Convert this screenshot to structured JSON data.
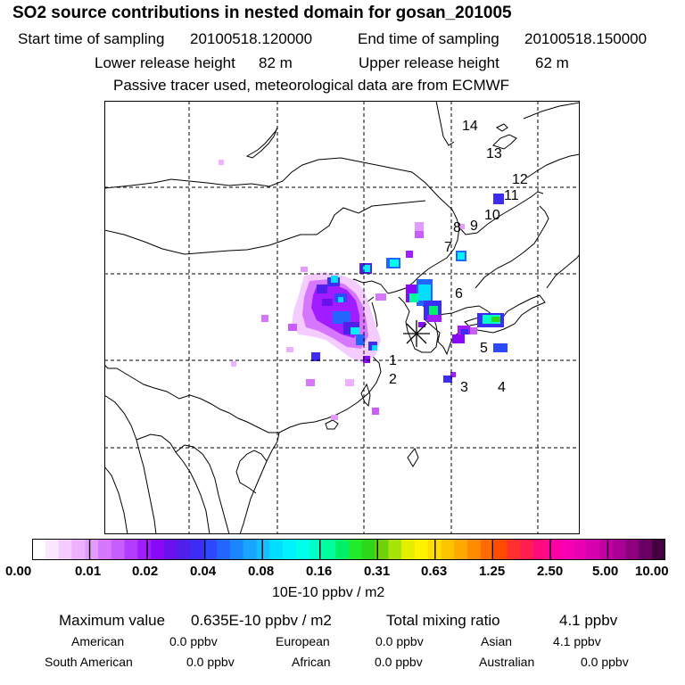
{
  "title": "SO2 source contributions in nested domain for gosan_201005",
  "sampling": {
    "start_label": "Start time of sampling",
    "start_value": "20100518.120000",
    "end_label": "End time of sampling",
    "end_value": "20100518.150000"
  },
  "release": {
    "lower_label": "Lower release height",
    "lower_value": "82 m",
    "upper_label": "Upper release height",
    "upper_value": "62 m"
  },
  "tracer_note": "Passive tracer used, meteorological data are from ECMWF",
  "map": {
    "receptor_marker": "asterisk",
    "region_labels": [
      "1",
      "2",
      "3",
      "4",
      "5",
      "6",
      "7",
      "8",
      "9",
      "10",
      "11",
      "12",
      "13",
      "14"
    ]
  },
  "colorbar": {
    "ticks": [
      "0.00",
      "0.01",
      "0.02",
      "0.04",
      "0.08",
      "0.16",
      "0.31",
      "0.63",
      "1.25",
      "2.50",
      "5.00",
      "10.00"
    ],
    "unit": "10E-10 ppbv / m2",
    "colors": [
      "#ffffff",
      "#fbe8ff",
      "#f4ccff",
      "#eeb1ff",
      "#e49bff",
      "#d777ff",
      "#c75cff",
      "#b23cff",
      "#a11dff",
      "#8a08f8",
      "#6a12ee",
      "#5020ea",
      "#3d2cf6",
      "#2d49ff",
      "#2266ff",
      "#1a86ff",
      "#19a4ff",
      "#13bfff",
      "#00ddff",
      "#00f2ff",
      "#00ffe9",
      "#00ffc6",
      "#00ff9c",
      "#00f06a",
      "#22ea2c",
      "#2fd71a",
      "#6ed20a",
      "#a6e40a",
      "#e4ef00",
      "#fff200",
      "#ffdc00",
      "#ffc400",
      "#ffa800",
      "#ff8c00",
      "#ff6a00",
      "#ff4a00",
      "#ff3030",
      "#ff1d52",
      "#ff0b7e",
      "#ff00a2",
      "#f800b2",
      "#ea00b2",
      "#d600ae",
      "#c200a6",
      "#aa0097",
      "#8c007e",
      "#6a0063",
      "#44003e"
    ]
  },
  "summary": {
    "max_label": "Maximum value",
    "max_value": "0.635E-10 ppbv / m2",
    "total_label": "Total mixing ratio",
    "total_value": "4.1 ppbv",
    "american_label": "American",
    "american_value": "0.0 ppbv",
    "european_label": "European",
    "european_value": "0.0 ppbv",
    "asian_label": "Asian",
    "asian_value": "4.1 ppbv",
    "south_american_label": "South American",
    "south_american_value": "0.0 ppbv",
    "african_label": "African",
    "african_value": "0.0 ppbv",
    "australian_label": "Australian",
    "australian_value": "0.0 ppbv"
  }
}
